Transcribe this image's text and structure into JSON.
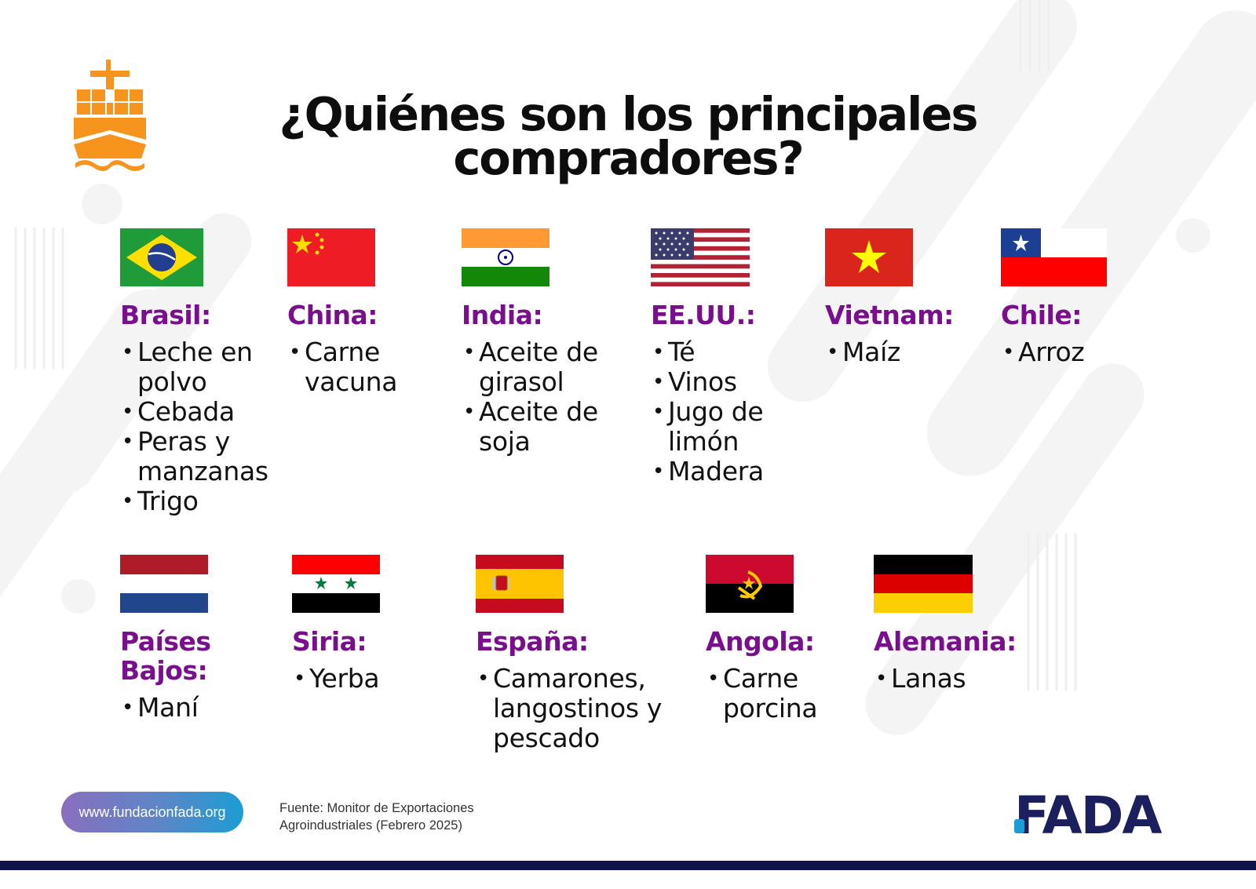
{
  "title": {
    "line1": "¿Quiénes son los principales",
    "line2": "compradores?"
  },
  "countries": [
    {
      "name": "Brasil:",
      "items": [
        "Leche en polvo",
        "Cebada",
        "Peras y manzanas",
        "Trigo"
      ]
    },
    {
      "name": "China:",
      "items": [
        "Carne vacuna"
      ]
    },
    {
      "name": "India:",
      "items": [
        "Aceite de girasol",
        "Aceite de soja"
      ]
    },
    {
      "name": "EE.UU.:",
      "items": [
        "Té",
        "Vinos",
        "Jugo de limón",
        "Madera"
      ]
    },
    {
      "name": "Vietnam:",
      "items": [
        "Maíz"
      ]
    },
    {
      "name": "Chile:",
      "items": [
        "Arroz"
      ]
    },
    {
      "name": "Países Bajos:",
      "items": [
        "Maní"
      ]
    },
    {
      "name": "Siria:",
      "items": [
        "Yerba"
      ]
    },
    {
      "name": "España:",
      "items": [
        "Camarones, langostinos y pescado"
      ]
    },
    {
      "name": "Angola:",
      "items": [
        "Carne porcina"
      ]
    },
    {
      "name": "Alemania:",
      "items": [
        "Lanas"
      ]
    }
  ],
  "footer": {
    "url": "www.fundacionfada.org",
    "source_line1": "Fuente: Monitor de Exportaciones",
    "source_line2": "Agroindustriales (Febrero 2025)",
    "logo_text": "FADA"
  },
  "colors": {
    "country_name": "#7a0f8e",
    "ship_icon": "#f7941d",
    "bottom_bar": "#12124a",
    "logo_navy": "#1b1f5e",
    "logo_cyan": "#1c9dd4"
  }
}
